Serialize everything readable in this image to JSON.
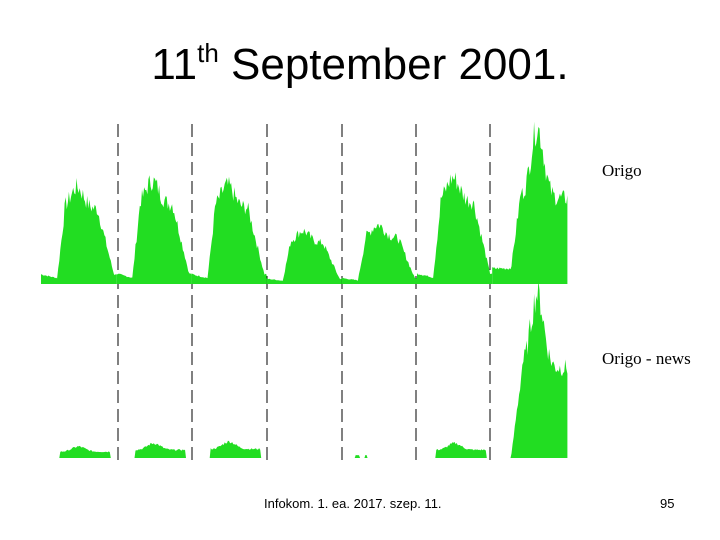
{
  "slide": {
    "title_main": "11",
    "title_sup": "th",
    "title_rest": " September 2001.",
    "footer_left": "Infokom. 1. ea. 2017. szep. 11.",
    "page_number": "95"
  },
  "colors": {
    "fill": "#22dd22",
    "divider": "#000000"
  },
  "chart_data": [
    {
      "type": "area",
      "title": "",
      "legend": [
        "Origo"
      ],
      "series": [
        {
          "name": "Origo",
          "days": [
            {
              "day": 1,
              "baseline": 0.1,
              "peak": 0.62,
              "shape": "broad"
            },
            {
              "day": 2,
              "baseline": 0.1,
              "peak": 0.66,
              "shape": "broad"
            },
            {
              "day": 3,
              "baseline": 0.1,
              "peak": 0.63,
              "shape": "broad"
            },
            {
              "day": 4,
              "baseline": 0.1,
              "peak": 0.34,
              "shape": "low"
            },
            {
              "day": 5,
              "baseline": 0.1,
              "peak": 0.38,
              "shape": "low"
            },
            {
              "day": 6,
              "baseline": 0.1,
              "peak": 0.68,
              "shape": "broad"
            },
            {
              "day": 7,
              "baseline": 0.1,
              "peak": 1.0,
              "shape": "spike"
            }
          ]
        }
      ],
      "grid": false
    },
    {
      "type": "area",
      "title": "",
      "legend": [
        "Origo - news"
      ],
      "series": [
        {
          "name": "Origo - news",
          "days": [
            {
              "day": 1,
              "baseline": 0.0,
              "peak": 0.07,
              "shape": "flat"
            },
            {
              "day": 2,
              "baseline": 0.0,
              "peak": 0.09,
              "shape": "flat"
            },
            {
              "day": 3,
              "baseline": 0.0,
              "peak": 0.1,
              "shape": "flat"
            },
            {
              "day": 4,
              "baseline": 0.0,
              "peak": 0.0,
              "shape": "none"
            },
            {
              "day": 5,
              "baseline": 0.0,
              "peak": 0.03,
              "shape": "tiny"
            },
            {
              "day": 6,
              "baseline": 0.0,
              "peak": 0.09,
              "shape": "flat"
            },
            {
              "day": 7,
              "baseline": 0.0,
              "peak": 1.0,
              "shape": "spike"
            }
          ]
        }
      ],
      "grid": false
    }
  ]
}
